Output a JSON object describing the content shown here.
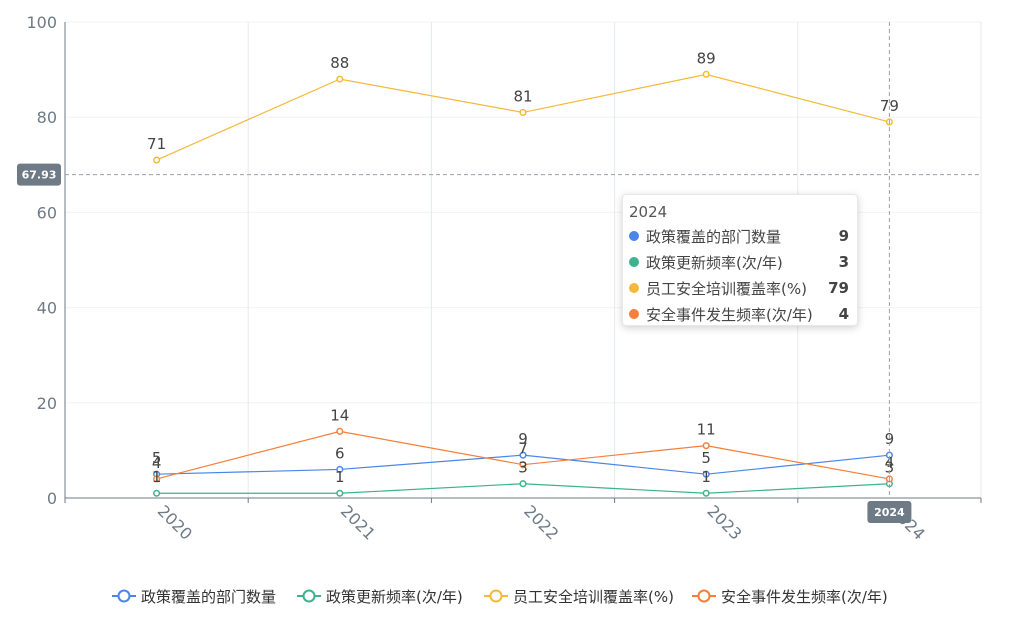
{
  "chart_data": {
    "type": "line",
    "categories": [
      "2020",
      "2021",
      "2022",
      "2023",
      "2024"
    ],
    "series": [
      {
        "name": "政策覆盖的部门数量",
        "color": "#4a86e8",
        "values": [
          5,
          6,
          9,
          5,
          9
        ]
      },
      {
        "name": "政策更新频率(次/年)",
        "color": "#3cb38a",
        "values": [
          1,
          1,
          3,
          1,
          3
        ]
      },
      {
        "name": "员工安全培训覆盖率(%)",
        "color": "#f4b93a",
        "values": [
          71,
          88,
          81,
          89,
          79
        ]
      },
      {
        "name": "安全事件发生频率(次/年)",
        "color": "#f47f3a",
        "values": [
          4,
          14,
          7,
          11,
          4
        ]
      }
    ],
    "ylim": [
      0,
      100
    ],
    "yticks": [
      0,
      20,
      40,
      60,
      80,
      100
    ],
    "grid": true,
    "legend": "bottom",
    "crosshair": {
      "y_value": 67.93,
      "y_label": "67.93",
      "x_category": "2024",
      "x_label": "2024"
    },
    "tooltip": {
      "title": "2024",
      "rows": [
        {
          "name": "政策覆盖的部门数量",
          "value": "9",
          "color": "#4a86e8"
        },
        {
          "name": "政策更新频率(次/年)",
          "value": "3",
          "color": "#3cb38a"
        },
        {
          "name": "员工安全培训覆盖率(%)",
          "value": "79",
          "color": "#f4b93a"
        },
        {
          "name": "安全事件发生频率(次/年)",
          "value": "4",
          "color": "#f47f3a"
        }
      ]
    }
  }
}
